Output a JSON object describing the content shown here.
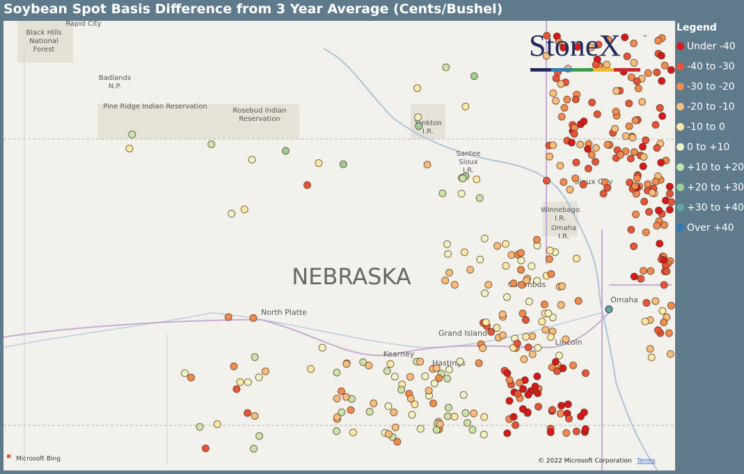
{
  "title": "Soybean Spot Basis Difference from 3 Year Average (Cents/Bushel)",
  "legend": {
    "title": "Legend",
    "items": [
      {
        "label": "Under -40",
        "color": "#d7191c"
      },
      {
        "label": "-40 to -30",
        "color": "#e5553a"
      },
      {
        "label": "-30 to -20",
        "color": "#f08c4f"
      },
      {
        "label": "-20 to -10",
        "color": "#f6be7c"
      },
      {
        "label": "-10 to 0",
        "color": "#fbeaa6"
      },
      {
        "label": "0 to +10",
        "color": "#eef4c4"
      },
      {
        "label": "+10 to +20",
        "color": "#c8e4aa"
      },
      {
        "label": "+20 to +30",
        "color": "#9ccf95"
      },
      {
        "label": "+30 to +40",
        "color": "#5ea8a4"
      },
      {
        "label": "Over +40",
        "color": "#2c7bb6"
      }
    ]
  },
  "logo": {
    "name": "StoneX",
    "mark": "™"
  },
  "map": {
    "labels": [
      "Rapid City",
      "Black Hills",
      "National",
      "Forest",
      "Badlands",
      "N.P.",
      "Pine Ridge Indian Reservation",
      "Rosebud Indian",
      "Reservation",
      "Yankton",
      "I.R.",
      "Santee",
      "Sioux",
      "I.R.",
      "Sioux City",
      "Winnebago",
      "I.R.",
      "Omaha",
      "I.R.",
      "NEBRASKA",
      "North Platte",
      "Columbus",
      "Omaha",
      "Grand Island",
      "Kearney",
      "Hastings",
      "Lincoln"
    ]
  },
  "attribution": {
    "bing": "Microsoft Bing",
    "copyright": "© 2022 Microsoft Corporation",
    "terms": "Terms"
  }
}
